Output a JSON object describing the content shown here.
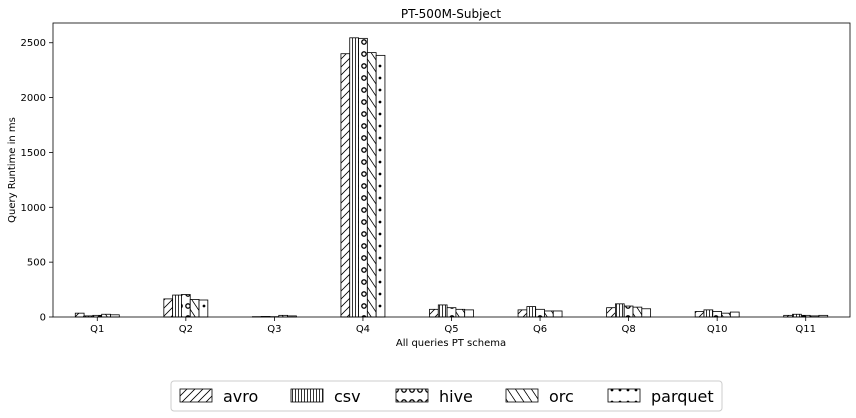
{
  "chart_data": {
    "type": "bar",
    "title": "PT-500M-Subject",
    "xlabel": "All queries PT schema",
    "ylabel": "Query Runtime in ms",
    "categories": [
      "Q1",
      "Q2",
      "Q3",
      "Q4",
      "Q5",
      "Q6",
      "Q8",
      "Q10",
      "Q11"
    ],
    "ylim": [
      0,
      2680
    ],
    "yticks": [
      0,
      500,
      1000,
      1500,
      2000,
      2500
    ],
    "grid": false,
    "legend_position": "bottom-center",
    "series": [
      {
        "name": "avro",
        "pattern": "diagonal-forward",
        "values": [
          35,
          165,
          3,
          2400,
          70,
          65,
          85,
          50,
          15
        ]
      },
      {
        "name": "csv",
        "pattern": "vertical-lines",
        "values": [
          10,
          200,
          5,
          2545,
          110,
          95,
          120,
          65,
          25
        ]
      },
      {
        "name": "hive",
        "pattern": "circles",
        "values": [
          15,
          205,
          3,
          2540,
          85,
          70,
          100,
          50,
          15
        ]
      },
      {
        "name": "orc",
        "pattern": "diagonal-back",
        "values": [
          25,
          160,
          15,
          2410,
          70,
          55,
          90,
          35,
          10
        ]
      },
      {
        "name": "parquet",
        "pattern": "dots",
        "values": [
          20,
          155,
          10,
          2385,
          65,
          55,
          75,
          45,
          15
        ]
      }
    ]
  }
}
